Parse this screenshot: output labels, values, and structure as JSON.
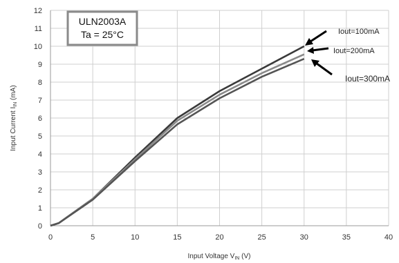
{
  "chart_data": {
    "type": "line",
    "title_box": [
      "ULN2003A",
      "Ta = 25°C"
    ],
    "xlabel": {
      "main": "Input Voltage V",
      "sub": "IN",
      "unit": " (V)"
    },
    "ylabel": {
      "main": "Input Current I",
      "sub": "IN",
      "unit": " (mA)"
    },
    "xlim": [
      0,
      40
    ],
    "ylim": [
      0,
      12
    ],
    "xticks": [
      0,
      5,
      10,
      15,
      20,
      25,
      30,
      35,
      40
    ],
    "yticks": [
      0,
      1,
      2,
      3,
      4,
      5,
      6,
      7,
      8,
      9,
      10,
      11,
      12
    ],
    "grid": true,
    "series": [
      {
        "name": "Iout=100mA",
        "color": "#3a3a3a",
        "x": [
          0,
          1,
          5,
          10,
          15,
          20,
          25,
          30
        ],
        "y": [
          0,
          0.15,
          1.5,
          3.8,
          6.0,
          7.5,
          8.75,
          10.0
        ]
      },
      {
        "name": "Iout=200mA",
        "color": "#8a8a8a",
        "x": [
          0,
          1,
          5,
          10,
          15,
          20,
          25,
          30
        ],
        "y": [
          0,
          0.15,
          1.5,
          3.7,
          5.85,
          7.3,
          8.5,
          9.55
        ]
      },
      {
        "name": "Iout=300mA",
        "color": "#555555",
        "x": [
          0,
          1,
          5,
          10,
          15,
          20,
          25,
          30
        ],
        "y": [
          0,
          0.15,
          1.45,
          3.6,
          5.65,
          7.1,
          8.3,
          9.3
        ]
      }
    ]
  }
}
